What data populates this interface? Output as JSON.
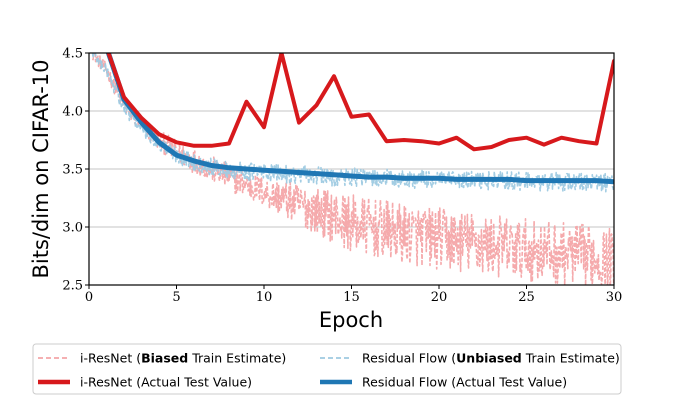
{
  "chart_data": {
    "type": "line",
    "xlabel": "Epoch",
    "ylabel": "Bits/dim on CIFAR-10",
    "xlim": [
      0,
      30
    ],
    "ylim": [
      2.5,
      4.5
    ],
    "x_ticks": [
      0,
      5,
      10,
      15,
      20,
      25,
      30
    ],
    "y_ticks": [
      2.5,
      3.0,
      3.5,
      4.0,
      4.5
    ],
    "x_tick_labels": [
      "0",
      "5",
      "10",
      "15",
      "20",
      "25",
      "30"
    ],
    "y_tick_labels": [
      "2.5",
      "3.0",
      "3.5",
      "4.0",
      "4.5"
    ],
    "grid": "horizontal",
    "legend_position": "bottom",
    "legend": [
      {
        "key": "iresnet_train",
        "prefix": "i-ResNet (",
        "bold": "Biased",
        "suffix": " Train Estimate)"
      },
      {
        "key": "resflow_train",
        "prefix": "Residual Flow (",
        "bold": "Unbiased",
        "suffix": " Train Estimate)"
      },
      {
        "key": "iresnet_test",
        "prefix": "i-ResNet (Actual Test Value)",
        "bold": "",
        "suffix": ""
      },
      {
        "key": "resflow_test",
        "prefix": "Residual Flow (Actual Test Value)",
        "bold": "",
        "suffix": ""
      }
    ],
    "series": [
      {
        "key": "iresnet_test",
        "color": "#d7191c",
        "style": "solid-thick",
        "x": [
          1,
          2,
          3,
          4,
          5,
          6,
          7,
          8,
          9,
          10,
          11,
          12,
          13,
          14,
          15,
          16,
          17,
          18,
          19,
          20,
          21,
          22,
          23,
          24,
          25,
          26,
          27,
          28,
          29,
          30
        ],
        "y": [
          4.55,
          4.12,
          3.94,
          3.8,
          3.73,
          3.7,
          3.7,
          3.72,
          4.08,
          3.86,
          4.5,
          3.9,
          4.05,
          4.3,
          3.95,
          3.97,
          3.74,
          3.75,
          3.74,
          3.72,
          3.77,
          3.67,
          3.69,
          3.75,
          3.77,
          3.71,
          3.77,
          3.74,
          3.72,
          4.43
        ]
      },
      {
        "key": "resflow_test",
        "color": "#1f77b4",
        "style": "solid-thick",
        "x": [
          1,
          2,
          3,
          4,
          5,
          6,
          7,
          8,
          9,
          10,
          11,
          12,
          13,
          14,
          15,
          16,
          17,
          18,
          19,
          20,
          21,
          22,
          23,
          24,
          25,
          26,
          27,
          28,
          29,
          30
        ],
        "y": [
          4.55,
          4.1,
          3.9,
          3.73,
          3.62,
          3.57,
          3.53,
          3.51,
          3.5,
          3.49,
          3.48,
          3.47,
          3.46,
          3.45,
          3.44,
          3.43,
          3.43,
          3.42,
          3.42,
          3.42,
          3.41,
          3.41,
          3.41,
          3.41,
          3.4,
          3.4,
          3.4,
          3.4,
          3.4,
          3.39
        ]
      },
      {
        "key": "iresnet_train",
        "color": "#f4a5a8",
        "style": "dashed",
        "trend": {
          "x": [
            0.2,
            1,
            2,
            3,
            4,
            5,
            6,
            7,
            8,
            9,
            10,
            11,
            12,
            13,
            14,
            15,
            16,
            17,
            18,
            19,
            20,
            21,
            22,
            23,
            24,
            25,
            26,
            27,
            28,
            29,
            30
          ],
          "y": [
            4.5,
            4.35,
            4.05,
            3.88,
            3.75,
            3.65,
            3.57,
            3.5,
            3.43,
            3.37,
            3.3,
            3.25,
            3.19,
            3.14,
            3.09,
            3.03,
            3.0,
            2.97,
            2.94,
            2.92,
            2.9,
            2.88,
            2.86,
            2.84,
            2.82,
            2.8,
            2.79,
            2.77,
            2.76,
            2.74,
            2.72
          ]
        },
        "noise": {
          "x": [
            0,
            5,
            10,
            12,
            15,
            20,
            30
          ],
          "amp": [
            0.05,
            0.1,
            0.13,
            0.18,
            0.25,
            0.27,
            0.27
          ]
        }
      },
      {
        "key": "resflow_train",
        "color": "#9ecae1",
        "style": "dashed",
        "trend": {
          "x": [
            0.2,
            1,
            2,
            3,
            4,
            5,
            6,
            7,
            8,
            9,
            10,
            11,
            12,
            13,
            14,
            15,
            16,
            17,
            18,
            19,
            20,
            21,
            22,
            23,
            24,
            25,
            26,
            27,
            28,
            29,
            30
          ],
          "y": [
            4.5,
            4.35,
            4.02,
            3.85,
            3.72,
            3.62,
            3.56,
            3.52,
            3.49,
            3.48,
            3.47,
            3.46,
            3.45,
            3.44,
            3.43,
            3.43,
            3.42,
            3.42,
            3.41,
            3.41,
            3.41,
            3.4,
            3.4,
            3.4,
            3.4,
            3.39,
            3.39,
            3.39,
            3.39,
            3.38,
            3.38
          ]
        },
        "noise": {
          "x": [
            0,
            5,
            10,
            30
          ],
          "amp": [
            0.05,
            0.07,
            0.08,
            0.08
          ]
        }
      }
    ]
  }
}
